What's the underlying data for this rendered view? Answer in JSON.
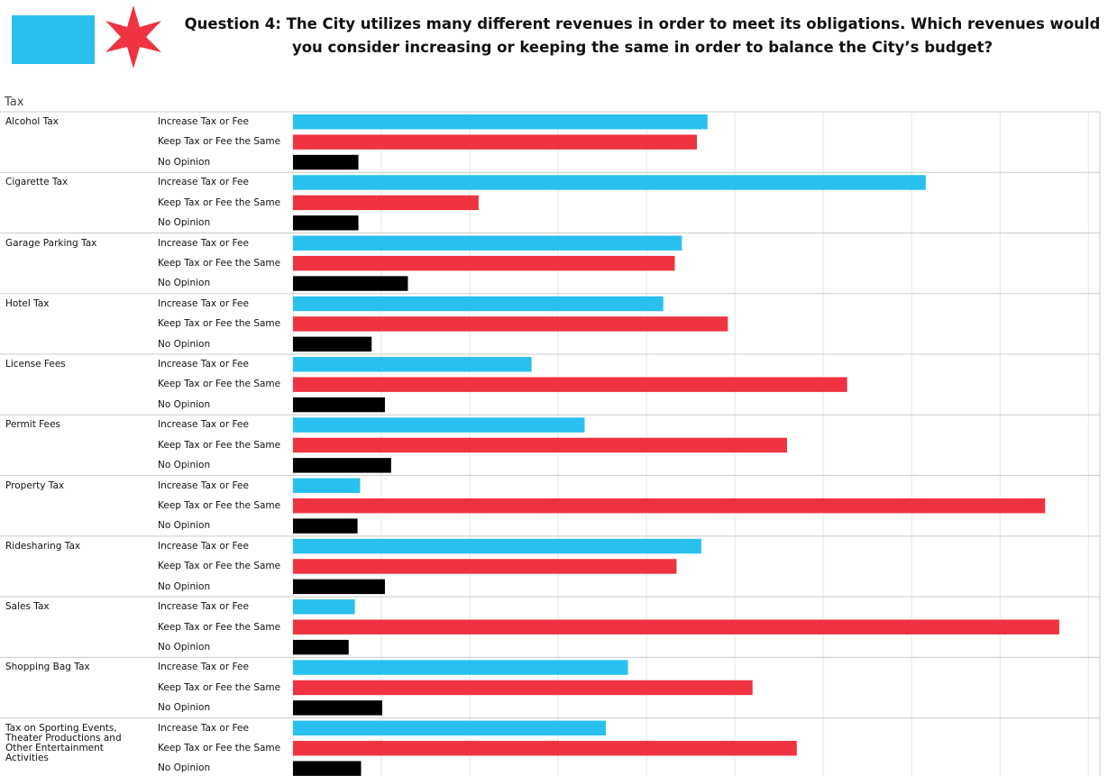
{
  "chart_data": {
    "type": "bar",
    "orientation": "horizontal",
    "title": "Question 4: The City utilizes many different revenues in order to meet its obligations. Which revenues would you consider increasing or keeping the same in order to balance the City’s budget?",
    "column_header": "Tax",
    "categories": [
      "Alcohol Tax",
      "Cigarette Tax",
      "Garage Parking Tax",
      "Hotel Tax",
      "License Fees",
      "Permit Fees",
      "Property Tax",
      "Ridesharing Tax",
      "Sales Tax",
      "Shopping Bag Tax",
      "Tax on Sporting Events, Theater Productions and Other Entertainment Activities"
    ],
    "series": [
      {
        "name": "Increase Tax or Fee",
        "color": "#29c0f0",
        "values": [
          469,
          716,
          440,
          419,
          270,
          330,
          76,
          462,
          70,
          379,
          354
        ]
      },
      {
        "name": "Keep Tax or Fee the Same",
        "color": "#ef3340",
        "values": [
          457,
          210,
          432,
          492,
          627,
          559,
          851,
          434,
          867,
          520,
          570
        ]
      },
      {
        "name": "No Opinion",
        "color": "#000000",
        "values": [
          74,
          74,
          130,
          89,
          104,
          111,
          73,
          104,
          63,
          101,
          77
        ]
      }
    ],
    "xlim": [
      0,
      913
    ],
    "xticks": [
      0,
      100,
      200,
      300,
      400,
      500,
      600,
      700,
      800,
      900
    ],
    "grid": true
  }
}
